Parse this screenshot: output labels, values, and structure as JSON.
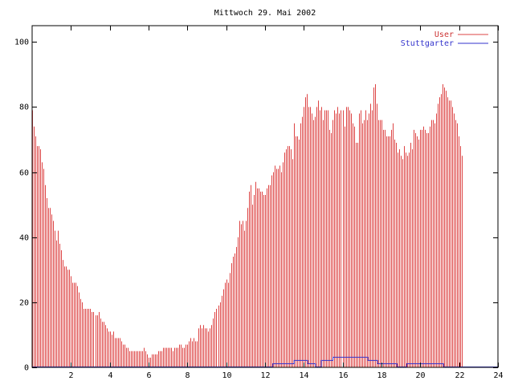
{
  "chart_data": {
    "type": "bar",
    "title": "Mittwoch 29. Mai 2002",
    "xlabel": "",
    "ylabel": "",
    "xlim": [
      0,
      24
    ],
    "ylim": [
      0,
      105
    ],
    "xticks": [
      "2",
      "4",
      "6",
      "8",
      "10",
      "12",
      "14",
      "16",
      "18",
      "20",
      "22",
      "24"
    ],
    "yticks": [
      "0",
      "20",
      "40",
      "60",
      "80",
      "100"
    ],
    "grid": false,
    "legend_position": "top-right",
    "colors": {
      "user": "#dd4444",
      "stuttgarter": "#3333cc",
      "axis": "#000000"
    },
    "series": [
      {
        "name": "User",
        "style": "impulses",
        "x0": 0,
        "dx": 0.0833,
        "values": [
          79,
          74,
          71,
          68,
          68,
          67,
          63,
          61,
          56,
          52,
          49,
          49,
          47,
          45,
          42,
          39,
          42,
          38,
          36,
          33,
          31,
          31,
          30,
          30,
          28,
          26,
          26,
          26,
          25,
          23,
          21,
          20,
          18,
          18,
          18,
          18,
          18,
          17,
          17,
          16,
          16,
          17,
          15,
          14,
          14,
          13,
          12,
          11,
          11,
          10,
          11,
          9,
          9,
          9,
          9,
          8,
          7,
          7,
          6,
          6,
          5,
          5,
          5,
          5,
          5,
          5,
          5,
          5,
          5,
          6,
          5,
          4,
          3,
          3,
          4,
          4,
          4,
          4,
          5,
          5,
          5,
          6,
          6,
          6,
          6,
          6,
          6,
          5,
          6,
          6,
          6,
          7,
          7,
          6,
          6,
          7,
          7,
          8,
          9,
          8,
          9,
          8,
          8,
          12,
          13,
          12,
          13,
          12,
          12,
          11,
          12,
          13,
          15,
          17,
          18,
          19,
          20,
          22,
          24,
          26,
          27,
          26,
          29,
          32,
          34,
          35,
          37,
          40,
          45,
          44,
          45,
          42,
          45,
          49,
          54,
          56,
          50,
          53,
          57,
          55,
          55,
          54,
          54,
          53,
          53,
          55,
          56,
          56,
          59,
          60,
          62,
          61,
          61,
          62,
          60,
          63,
          66,
          67,
          68,
          68,
          67,
          64,
          75,
          71,
          71,
          70,
          75,
          77,
          80,
          83,
          84,
          80,
          80,
          78,
          76,
          77,
          80,
          82,
          79,
          80,
          76,
          79,
          79,
          79,
          73,
          72,
          76,
          79,
          78,
          80,
          78,
          79,
          79,
          74,
          80,
          80,
          79,
          78,
          75,
          74,
          69,
          69,
          78,
          79,
          75,
          76,
          79,
          76,
          78,
          81,
          79,
          86,
          87,
          81,
          76,
          76,
          76,
          73,
          73,
          71,
          71,
          71,
          73,
          75,
          70,
          69,
          66,
          67,
          65,
          64,
          68,
          66,
          65,
          66,
          69,
          67,
          73,
          72,
          71,
          70,
          73,
          73,
          74,
          73,
          72,
          72,
          74,
          76,
          76,
          75,
          78,
          81,
          83,
          84,
          87,
          86,
          85,
          83,
          82,
          82,
          80,
          78,
          76,
          75,
          71,
          68,
          65
        ]
      },
      {
        "name": "Stuttgarter",
        "style": "steps",
        "segments": [
          {
            "x0": 0,
            "x1": 12.4,
            "y": 0
          },
          {
            "x0": 12.4,
            "x1": 13.5,
            "y": 1
          },
          {
            "x0": 13.5,
            "x1": 14.2,
            "y": 2
          },
          {
            "x0": 14.2,
            "x1": 14.6,
            "y": 1
          },
          {
            "x0": 14.6,
            "x1": 14.9,
            "y": 0
          },
          {
            "x0": 14.9,
            "x1": 15.5,
            "y": 2
          },
          {
            "x0": 15.5,
            "x1": 17.3,
            "y": 3
          },
          {
            "x0": 17.3,
            "x1": 17.8,
            "y": 2
          },
          {
            "x0": 17.8,
            "x1": 18.8,
            "y": 1
          },
          {
            "x0": 18.8,
            "x1": 19.3,
            "y": 0
          },
          {
            "x0": 19.3,
            "x1": 21.2,
            "y": 1
          },
          {
            "x0": 21.2,
            "x1": 24,
            "y": 0
          }
        ]
      }
    ]
  }
}
